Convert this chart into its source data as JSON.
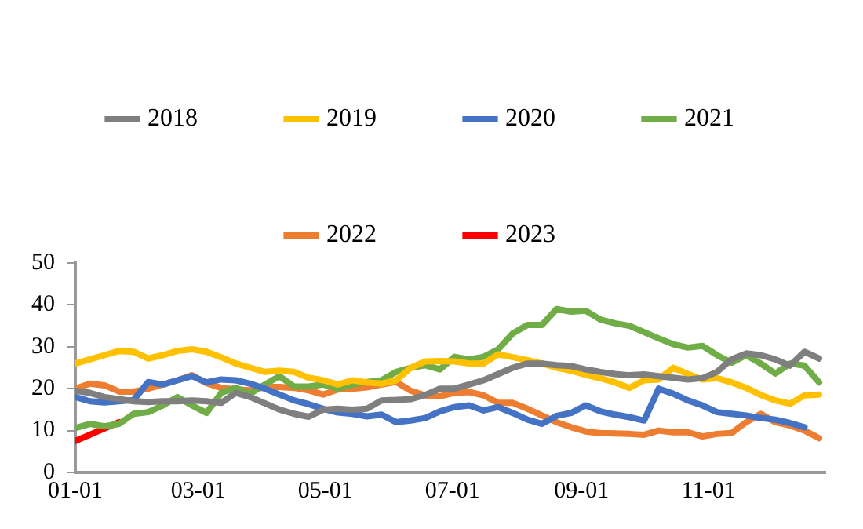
{
  "chart_data": {
    "type": "line",
    "x": [
      "--01-01",
      "--01-08",
      "--01-15",
      "--01-22",
      "--01-29",
      "--02-05",
      "--02-12",
      "--02-19",
      "--02-26",
      "--03-05",
      "--03-12",
      "--03-19",
      "--03-26",
      "--04-02",
      "--04-09",
      "--04-16",
      "--04-23",
      "--04-30",
      "--05-07",
      "--05-14",
      "--05-21",
      "--05-28",
      "--06-04",
      "--06-11",
      "--06-18",
      "--06-25",
      "--07-02",
      "--07-09",
      "--07-16",
      "--07-23",
      "--07-30",
      "--08-06",
      "--08-13",
      "--08-20",
      "--08-27",
      "--09-03",
      "--09-10",
      "--09-17",
      "--09-24",
      "--10-01",
      "--10-08",
      "--10-15",
      "--10-22",
      "--10-29",
      "--11-05",
      "--11-12",
      "--11-19",
      "--11-26",
      "--12-03",
      "--12-10",
      "--12-17",
      "--12-24"
    ],
    "series": [
      {
        "name": "2018",
        "color": "#7f7f7f",
        "values": [
          19.5,
          19,
          18,
          17.5,
          17,
          16.8,
          17,
          17,
          17.2,
          17,
          16.6,
          19,
          18,
          16.5,
          15,
          14,
          13.3,
          15,
          15.2,
          15,
          15.2,
          17.2,
          17.3,
          17.5,
          18.5,
          20,
          20,
          21,
          22,
          23.5,
          25,
          26,
          26,
          25.6,
          25.4,
          24.6,
          24,
          23.5,
          23.2,
          23.4,
          23,
          22.6,
          22.2,
          22.5,
          24,
          27,
          28.4,
          28,
          27,
          25.5,
          28.8,
          27.2
        ]
      },
      {
        "name": "2019",
        "color": "#ffc000",
        "values": [
          26,
          27,
          28,
          29,
          28.8,
          27.2,
          28,
          29,
          29.4,
          28.8,
          27.5,
          26,
          25,
          24,
          24.3,
          24,
          22.6,
          22,
          21,
          22,
          21.5,
          21.2,
          22,
          25,
          26.5,
          26.6,
          26.5,
          26,
          26,
          28.2,
          27.5,
          26.8,
          26,
          25,
          24.3,
          23.3,
          22.5,
          21.5,
          20.2,
          22,
          22.2,
          25,
          23.5,
          22.2,
          22.5,
          21.5,
          20.2,
          18.5,
          17.2,
          16.4,
          18.4,
          18.6
        ]
      },
      {
        "name": "2020",
        "color": "#4472c4",
        "values": [
          18,
          17,
          16.7,
          17,
          17.3,
          21.6,
          21,
          22,
          23,
          21.5,
          22.2,
          22,
          21.2,
          20,
          18.6,
          17.2,
          16.3,
          15.2,
          14.3,
          14,
          13.4,
          13.8,
          12,
          12.4,
          13,
          14.6,
          15.6,
          16,
          14.8,
          15.6,
          14.2,
          12.6,
          11.6,
          13.5,
          14.2,
          16,
          14.6,
          13.8,
          13.2,
          12.4,
          20,
          18.8,
          17.2,
          16,
          14.4,
          14,
          13.6,
          13,
          12.6,
          11.8,
          10.8,
          null
        ]
      },
      {
        "name": "2021",
        "color": "#70ad47",
        "values": [
          10.6,
          11.6,
          11,
          11.6,
          14,
          14.4,
          16,
          18,
          16,
          14.2,
          19,
          20.2,
          18.8,
          21,
          23,
          20.5,
          20.5,
          21,
          20,
          21,
          21.6,
          22,
          24,
          25,
          25.6,
          24.6,
          27.6,
          27,
          27.6,
          29.4,
          33.2,
          35.2,
          35.2,
          39,
          38.4,
          38.6,
          36.5,
          35.6,
          35,
          33.5,
          32,
          30.6,
          29.8,
          30.2,
          28,
          26.2,
          28,
          26,
          23.6,
          26,
          25.5,
          21.5
        ]
      },
      {
        "name": "2022",
        "color": "#ed7d31",
        "values": [
          20,
          21.2,
          20.8,
          19.3,
          19.3,
          20,
          21,
          22,
          23.2,
          21.3,
          20.2,
          19.8,
          19.6,
          20.4,
          20.4,
          20.2,
          19.6,
          18.6,
          19.8,
          20,
          20.3,
          21,
          21.6,
          19.5,
          18.4,
          18.2,
          19,
          19.2,
          18.4,
          16.6,
          16.6,
          15.2,
          13.6,
          12,
          10.8,
          9.8,
          9.4,
          9.3,
          9.2,
          9,
          10,
          9.6,
          9.6,
          8.6,
          9.2,
          9.4,
          12,
          14,
          12,
          11.2,
          10,
          8.2
        ]
      },
      {
        "name": "2023",
        "color": "#ff0000",
        "x": [
          "--01-01",
          "--01-08",
          "--01-15",
          "--01-22"
        ],
        "values": [
          7.5,
          9,
          10.5,
          12
        ]
      }
    ],
    "xlim": [
      "--01-01",
      "--12-27"
    ],
    "xticks": [
      {
        "value": "--01-01",
        "label": "01-01"
      },
      {
        "value": "--03-01",
        "label": "03-01"
      },
      {
        "value": "--05-01",
        "label": "05-01"
      },
      {
        "value": "--07-01",
        "label": "07-01"
      },
      {
        "value": "--09-01",
        "label": "09-01"
      },
      {
        "value": "--11-01",
        "label": "11-01"
      }
    ],
    "ylim": [
      0,
      50
    ],
    "yticks": [
      0,
      10,
      20,
      30,
      40,
      50
    ],
    "legend": "top"
  }
}
